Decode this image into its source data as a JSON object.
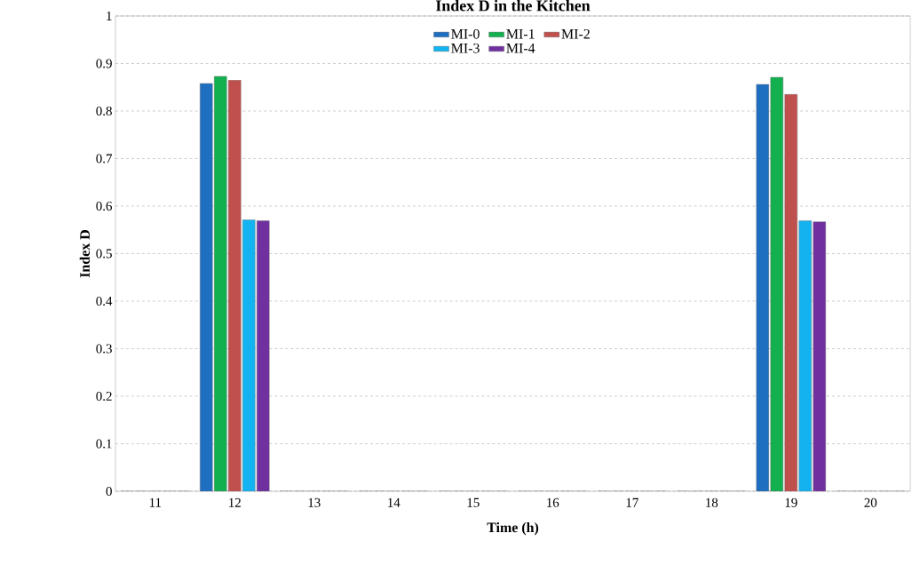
{
  "chart_data": {
    "type": "bar",
    "title": "Index D in the Kitchen",
    "xlabel": "Time (h)",
    "ylabel": "Index D",
    "categories": [
      "11",
      "12",
      "13",
      "14",
      "15",
      "16",
      "17",
      "18",
      "19",
      "20"
    ],
    "series": [
      {
        "name": "MI-0",
        "color": "#1f6fc0",
        "values": [
          0,
          0.858,
          0,
          0,
          0,
          0,
          0,
          0,
          0.856,
          0
        ]
      },
      {
        "name": "MI-1",
        "color": "#13b04f",
        "values": [
          0,
          0.873,
          0,
          0,
          0,
          0,
          0,
          0,
          0.871,
          0
        ]
      },
      {
        "name": "MI-2",
        "color": "#c0504d",
        "values": [
          0,
          0.865,
          0,
          0,
          0,
          0,
          0,
          0,
          0.835,
          0
        ]
      },
      {
        "name": "MI-3",
        "color": "#12b3f0",
        "values": [
          0,
          0.571,
          0,
          0,
          0,
          0,
          0,
          0,
          0.569,
          0
        ]
      },
      {
        "name": "MI-4",
        "color": "#7030a0",
        "values": [
          0,
          0.569,
          0,
          0,
          0,
          0,
          0,
          0,
          0.567,
          0
        ]
      }
    ],
    "ylim": [
      0,
      1
    ],
    "yticks": [
      0,
      0.1,
      0.2,
      0.3,
      0.4,
      0.5,
      0.6,
      0.7,
      0.8,
      0.9,
      1
    ],
    "grid": "y",
    "legend": "top"
  }
}
